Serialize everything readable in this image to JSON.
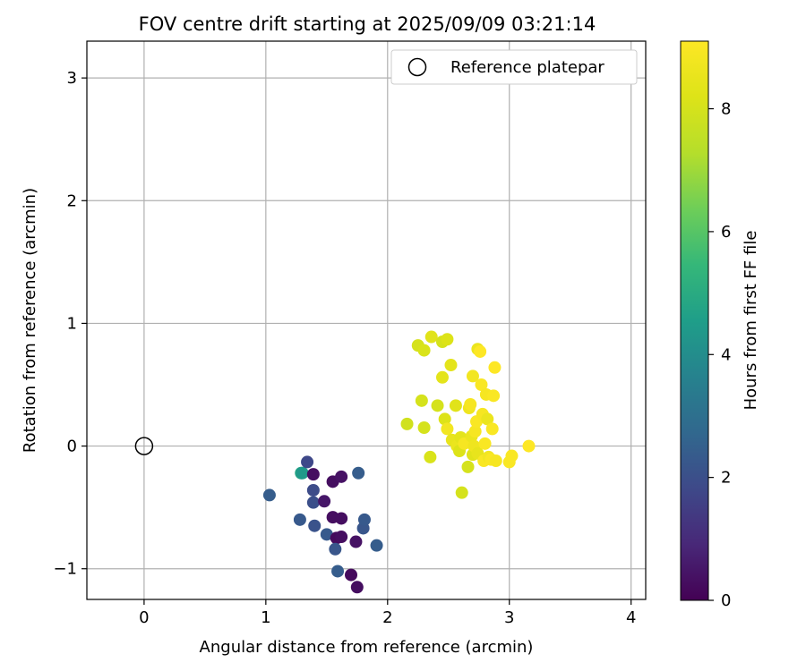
{
  "chart_data": {
    "type": "scatter",
    "title": "FOV centre drift starting at 2025/09/09 03:21:14",
    "xlabel": "Angular distance from reference (arcmin)",
    "ylabel": "Rotation from reference (arcmin)",
    "xlim": [
      -0.47,
      4.12
    ],
    "ylim": [
      -1.25,
      3.3
    ],
    "xticks": [
      0,
      1,
      2,
      3,
      4
    ],
    "yticks": [
      -1,
      0,
      1,
      2,
      3
    ],
    "xtick_labels": [
      "0",
      "1",
      "2",
      "3",
      "4"
    ],
    "ytick_labels": [
      "−1",
      "0",
      "1",
      "2",
      "3"
    ],
    "grid": true,
    "legend": {
      "placement": "top-right",
      "entries": [
        "Reference platepar"
      ]
    },
    "reference_point": {
      "x": 0,
      "y": 0,
      "label": "Reference platepar"
    },
    "colorbar": {
      "label": "Hours from first FF file",
      "range": [
        0,
        9.1
      ],
      "ticks": [
        0,
        2,
        4,
        6,
        8
      ],
      "tick_labels": [
        "0",
        "2",
        "4",
        "6",
        "8"
      ],
      "colormap": "viridis"
    },
    "points": [
      {
        "x": 1.29,
        "y": -0.22,
        "h": 4.8
      },
      {
        "x": 1.3,
        "y": -0.22,
        "h": 4.4
      },
      {
        "x": 1.34,
        "y": -0.13,
        "h": 1.8
      },
      {
        "x": 1.39,
        "y": -0.23,
        "h": 0.3
      },
      {
        "x": 1.39,
        "y": -0.36,
        "h": 1.9
      },
      {
        "x": 1.39,
        "y": -0.46,
        "h": 2.0
      },
      {
        "x": 1.03,
        "y": -0.4,
        "h": 2.4
      },
      {
        "x": 1.28,
        "y": -0.6,
        "h": 2.3
      },
      {
        "x": 1.4,
        "y": -0.65,
        "h": 2.1
      },
      {
        "x": 1.48,
        "y": -0.45,
        "h": 0.5
      },
      {
        "x": 1.5,
        "y": -0.72,
        "h": 2.3
      },
      {
        "x": 1.55,
        "y": -0.29,
        "h": 0.3
      },
      {
        "x": 1.62,
        "y": -0.25,
        "h": 0.4
      },
      {
        "x": 1.55,
        "y": -0.58,
        "h": 0.3
      },
      {
        "x": 1.62,
        "y": -0.59,
        "h": 0.3
      },
      {
        "x": 1.58,
        "y": -0.75,
        "h": 0.2
      },
      {
        "x": 1.62,
        "y": -0.74,
        "h": 0.3
      },
      {
        "x": 1.57,
        "y": -0.84,
        "h": 2.2
      },
      {
        "x": 1.59,
        "y": -1.02,
        "h": 2.4
      },
      {
        "x": 1.7,
        "y": -1.05,
        "h": 0.2
      },
      {
        "x": 1.75,
        "y": -1.15,
        "h": 0.3
      },
      {
        "x": 1.74,
        "y": -0.78,
        "h": 0.4
      },
      {
        "x": 1.76,
        "y": -0.22,
        "h": 2.4
      },
      {
        "x": 1.8,
        "y": -0.67,
        "h": 2.2
      },
      {
        "x": 1.81,
        "y": -0.6,
        "h": 2.3
      },
      {
        "x": 1.91,
        "y": -0.81,
        "h": 2.4
      },
      {
        "x": 2.16,
        "y": 0.18,
        "h": 7.9
      },
      {
        "x": 2.25,
        "y": 0.82,
        "h": 8.0
      },
      {
        "x": 2.3,
        "y": 0.78,
        "h": 8.1
      },
      {
        "x": 2.36,
        "y": 0.89,
        "h": 8.3
      },
      {
        "x": 2.45,
        "y": 0.85,
        "h": 8.0
      },
      {
        "x": 2.49,
        "y": 0.87,
        "h": 8.2
      },
      {
        "x": 2.28,
        "y": 0.37,
        "h": 8.0
      },
      {
        "x": 2.3,
        "y": 0.15,
        "h": 8.0
      },
      {
        "x": 2.35,
        "y": -0.09,
        "h": 8.1
      },
      {
        "x": 2.41,
        "y": 0.33,
        "h": 8.0
      },
      {
        "x": 2.45,
        "y": 0.56,
        "h": 8.4
      },
      {
        "x": 2.47,
        "y": 0.22,
        "h": 8.2
      },
      {
        "x": 2.49,
        "y": 0.14,
        "h": 8.8
      },
      {
        "x": 2.52,
        "y": 0.66,
        "h": 8.4
      },
      {
        "x": 2.53,
        "y": 0.05,
        "h": 8.5
      },
      {
        "x": 2.56,
        "y": 0.33,
        "h": 8.3
      },
      {
        "x": 2.57,
        "y": 0.0,
        "h": 8.6
      },
      {
        "x": 2.59,
        "y": -0.04,
        "h": 8.2
      },
      {
        "x": 2.6,
        "y": 0.07,
        "h": 8.4
      },
      {
        "x": 2.61,
        "y": -0.38,
        "h": 8.0
      },
      {
        "x": 2.63,
        "y": 0.02,
        "h": 8.9
      },
      {
        "x": 2.66,
        "y": -0.17,
        "h": 8.0
      },
      {
        "x": 2.67,
        "y": 0.31,
        "h": 8.7
      },
      {
        "x": 2.68,
        "y": 0.34,
        "h": 8.9
      },
      {
        "x": 2.69,
        "y": 0.08,
        "h": 8.6
      },
      {
        "x": 2.7,
        "y": -0.07,
        "h": 8.3
      },
      {
        "x": 2.7,
        "y": 0.57,
        "h": 8.8
      },
      {
        "x": 2.71,
        "y": 0.0,
        "h": 8.7
      },
      {
        "x": 2.72,
        "y": 0.12,
        "h": 8.9
      },
      {
        "x": 2.73,
        "y": 0.2,
        "h": 9.0
      },
      {
        "x": 2.74,
        "y": -0.06,
        "h": 8.5
      },
      {
        "x": 2.74,
        "y": 0.79,
        "h": 8.6
      },
      {
        "x": 2.76,
        "y": 0.77,
        "h": 9.1
      },
      {
        "x": 2.77,
        "y": 0.5,
        "h": 9.0
      },
      {
        "x": 2.78,
        "y": 0.26,
        "h": 8.9
      },
      {
        "x": 2.79,
        "y": -0.12,
        "h": 9.0
      },
      {
        "x": 2.8,
        "y": 0.02,
        "h": 9.0
      },
      {
        "x": 2.81,
        "y": 0.42,
        "h": 8.9
      },
      {
        "x": 2.82,
        "y": 0.22,
        "h": 8.6
      },
      {
        "x": 2.83,
        "y": -0.09,
        "h": 8.8
      },
      {
        "x": 2.85,
        "y": -0.11,
        "h": 9.0
      },
      {
        "x": 2.86,
        "y": 0.14,
        "h": 9.0
      },
      {
        "x": 2.87,
        "y": 0.41,
        "h": 9.0
      },
      {
        "x": 2.88,
        "y": 0.64,
        "h": 9.1
      },
      {
        "x": 2.89,
        "y": -0.12,
        "h": 8.9
      },
      {
        "x": 3.0,
        "y": -0.13,
        "h": 9.0
      },
      {
        "x": 3.02,
        "y": -0.08,
        "h": 9.0
      },
      {
        "x": 3.16,
        "y": 0.0,
        "h": 9.1
      }
    ]
  }
}
